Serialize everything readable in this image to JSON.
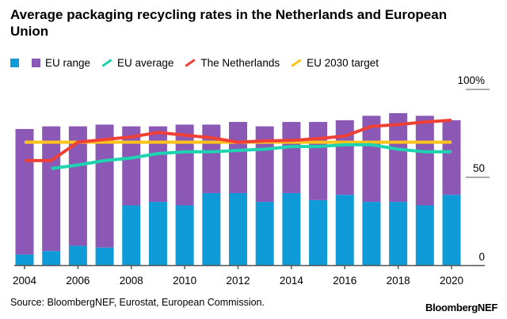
{
  "chart_data": {
    "type": "bar",
    "title": "Average packaging recycling rates in the Netherlands and European Union",
    "categories": [
      2004,
      2005,
      2006,
      2007,
      2008,
      2009,
      2010,
      2011,
      2012,
      2013,
      2014,
      2015,
      2016,
      2017,
      2018,
      2019,
      2020
    ],
    "x_tick_labels": [
      "2004",
      "2006",
      "2008",
      "2010",
      "2012",
      "2014",
      "2016",
      "2018",
      "2020"
    ],
    "y_tick_labels": [
      "0",
      "50",
      "100%"
    ],
    "ylim": [
      0,
      100
    ],
    "y_axis_side": "right",
    "grid": false,
    "legend_placement": "top",
    "series": [
      {
        "name": "EU range",
        "kind": "range-bar",
        "color": "#8b58b5",
        "color_min": "#0e9bd8",
        "min": [
          6,
          8,
          11,
          10,
          34,
          36,
          34,
          41,
          41,
          36,
          41,
          37,
          40,
          36,
          36,
          34,
          40
        ],
        "max": [
          77.5,
          79,
          79,
          80,
          79,
          79,
          80,
          80,
          81.5,
          79,
          81.5,
          81.5,
          82.5,
          85,
          86.5,
          85,
          82.5
        ]
      },
      {
        "name": "EU average",
        "kind": "line",
        "color": "#1dd3b0",
        "values": [
          null,
          55,
          57,
          59.5,
          61,
          63.5,
          64.5,
          64.5,
          65.3,
          66,
          67.5,
          67.5,
          68.5,
          68.5,
          66,
          64.5,
          64.5
        ]
      },
      {
        "name": "The Netherlands",
        "kind": "line",
        "color": "#ef4136",
        "values": [
          59.5,
          59.5,
          70,
          71.5,
          73,
          75.5,
          74,
          72.5,
          70,
          70.7,
          71,
          72,
          73.5,
          79,
          80,
          81.5,
          82.5
        ]
      },
      {
        "name": "EU 2030 target",
        "kind": "line",
        "color": "#fcc31b",
        "values": [
          70,
          70,
          70,
          70,
          70,
          70,
          70,
          70,
          70,
          70,
          70,
          70,
          70,
          70,
          70,
          70,
          70
        ]
      }
    ],
    "legend": [
      {
        "label": "",
        "color": "#0e9bd8",
        "shape": "square"
      },
      {
        "label": "EU range",
        "color": "#8b58b5",
        "shape": "square"
      },
      {
        "label": "EU average",
        "color": "#1dd3b0",
        "shape": "line"
      },
      {
        "label": "The Netherlands",
        "color": "#ef4136",
        "shape": "line"
      },
      {
        "label": "EU 2030 target",
        "color": "#fcc31b",
        "shape": "line"
      }
    ]
  },
  "source": "Source: BloombergNEF, Eurostat, European Commission.",
  "logo": "BloombergNEF"
}
